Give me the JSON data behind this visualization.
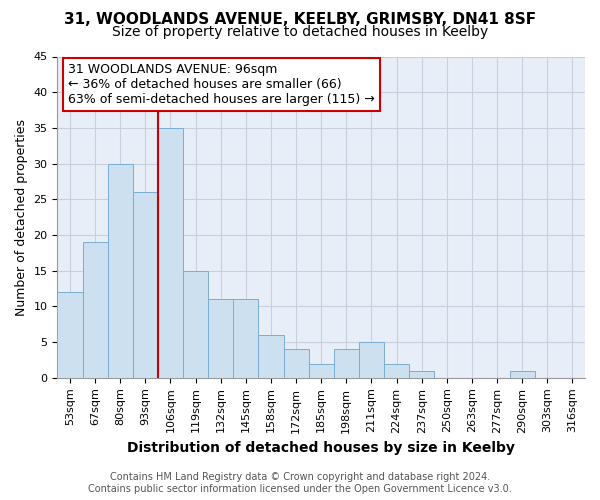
{
  "title1": "31, WOODLANDS AVENUE, KEELBY, GRIMSBY, DN41 8SF",
  "title2": "Size of property relative to detached houses in Keelby",
  "xlabel": "Distribution of detached houses by size in Keelby",
  "ylabel": "Number of detached properties",
  "annotation_line1": "31 WOODLANDS AVENUE: 96sqm",
  "annotation_line2": "← 36% of detached houses are smaller (66)",
  "annotation_line3": "63% of semi-detached houses are larger (115) →",
  "footer1": "Contains HM Land Registry data © Crown copyright and database right 2024.",
  "footer2": "Contains public sector information licensed under the Open Government Licence v3.0.",
  "bin_labels": [
    "53sqm",
    "67sqm",
    "80sqm",
    "93sqm",
    "106sqm",
    "119sqm",
    "132sqm",
    "145sqm",
    "158sqm",
    "172sqm",
    "185sqm",
    "198sqm",
    "211sqm",
    "224sqm",
    "237sqm",
    "250sqm",
    "263sqm",
    "277sqm",
    "290sqm",
    "303sqm",
    "316sqm"
  ],
  "bar_values": [
    12,
    19,
    30,
    26,
    35,
    15,
    11,
    11,
    6,
    4,
    2,
    4,
    5,
    2,
    1,
    0,
    0,
    0,
    1,
    0,
    0
  ],
  "bar_color": "#cde0f0",
  "bar_edge_color": "#7aadd4",
  "vline_x": 3.5,
  "vline_color": "#cc0000",
  "ylim": [
    0,
    45
  ],
  "yticks": [
    0,
    5,
    10,
    15,
    20,
    25,
    30,
    35,
    40,
    45
  ],
  "background_color": "#ffffff",
  "plot_bg_color": "#e8eef8",
  "annotation_box_color": "white",
  "annotation_box_edge": "#cc0000",
  "grid_color": "#c8d0e0",
  "title1_fontsize": 11,
  "title2_fontsize": 10,
  "xlabel_fontsize": 10,
  "ylabel_fontsize": 9,
  "tick_fontsize": 8,
  "annotation_fontsize": 9,
  "footer_fontsize": 7
}
